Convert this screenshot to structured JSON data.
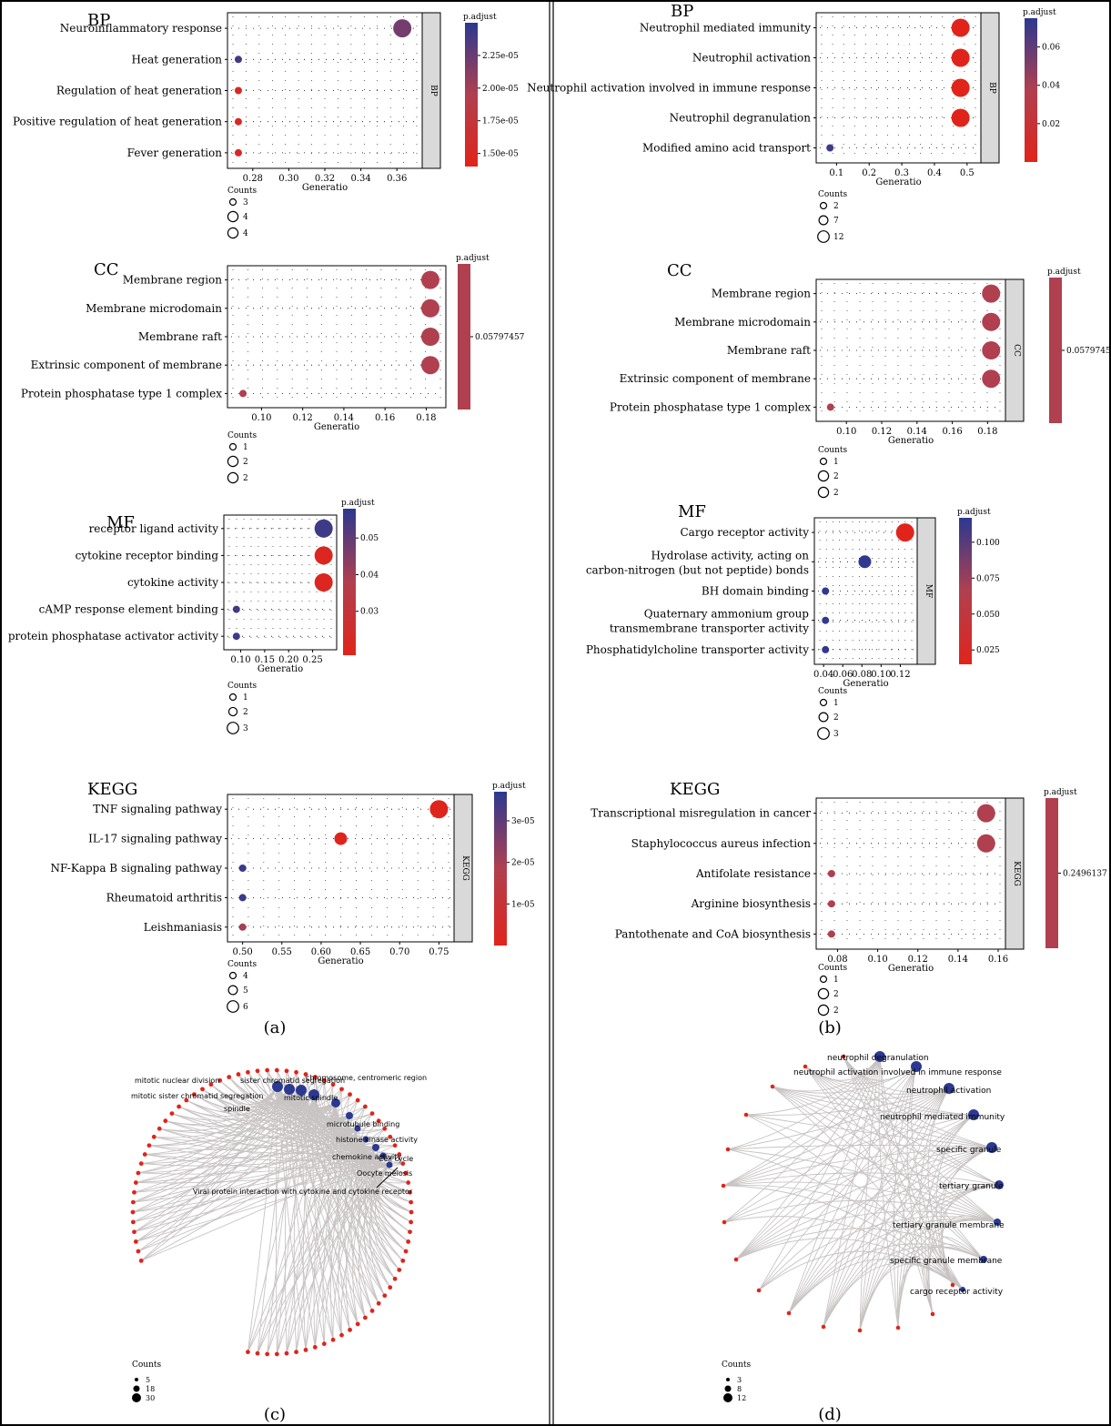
{
  "panels": {
    "a": "(a)",
    "b": "(b)",
    "c": "(c)",
    "d": "(d)"
  },
  "common": {
    "xlabel": "Generatio",
    "legend_title": "Counts",
    "colorbar_title": "p.adjust"
  },
  "colors": {
    "high_sig_red": "#e0241b",
    "mid": "#b0404f",
    "low_sig_blue": "#2b3990",
    "strip_bg": "#d9d9d9",
    "edge": "#c8c3c3",
    "node_red": "#e0241b"
  },
  "chart_data": [
    {
      "id": "a-bp",
      "type": "scatter",
      "title": "BP",
      "strip": "BP",
      "categories": [
        "Neuroinflammatory response",
        "Heat generation",
        "Regulation of heat generation",
        "Positive regulation of heat generation",
        "Fever generation"
      ],
      "x": [
        0.363,
        0.272,
        0.272,
        0.272,
        0.272
      ],
      "counts": [
        4,
        3,
        3,
        3,
        3
      ],
      "p_adjust": [
        2.2e-05,
        2.4e-05,
        1.5e-05,
        1.5e-05,
        1.5e-05
      ],
      "xlim": [
        0.27,
        0.37
      ],
      "xticks": [
        "0.28",
        "0.30",
        "0.32",
        "0.34",
        "0.36"
      ],
      "xtick_values": [
        0.28,
        0.3,
        0.32,
        0.34,
        0.36
      ],
      "colorbar": {
        "range": [
          1.4e-05,
          2.5e-05
        ],
        "ticks": [
          "2.25e-05",
          "2.00e-05",
          "1.75e-05",
          "1.50e-05"
        ],
        "tick_values": [
          2.25e-05,
          2e-05,
          1.75e-05,
          1.5e-05
        ],
        "gradient": true
      },
      "size_legend": [
        "3",
        "4",
        "4"
      ]
    },
    {
      "id": "a-cc",
      "type": "scatter",
      "title": "CC",
      "strip": "",
      "categories": [
        "Membrane region",
        "Membrane microdomain",
        "Membrane raft",
        "Extrinsic component of membrane",
        "Protein phosphatase type 1 complex"
      ],
      "x": [
        0.182,
        0.182,
        0.182,
        0.182,
        0.091
      ],
      "counts": [
        2,
        2,
        2,
        2,
        1
      ],
      "p_adjust": [
        0.05797457,
        0.05797457,
        0.05797457,
        0.05797457,
        0.05797457
      ],
      "xlim": [
        0.087,
        0.186
      ],
      "xticks": [
        "0.10",
        "0.12",
        "0.14",
        "0.16",
        "0.18"
      ],
      "xtick_values": [
        0.1,
        0.12,
        0.14,
        0.16,
        0.18
      ],
      "colorbar": {
        "ticks": [
          "0.05797457"
        ],
        "tick_values": [
          0.5
        ],
        "gradient": false
      },
      "size_legend": [
        "1",
        "2",
        "2"
      ]
    },
    {
      "id": "a-mf",
      "type": "scatter",
      "title": "MF",
      "strip": "",
      "categories": [
        "receptor ligand activity",
        "cytokine receptor binding",
        "cytokine activity",
        "cAMP response element binding",
        "protein phosphatase activator activity"
      ],
      "x": [
        0.273,
        0.273,
        0.273,
        0.091,
        0.091
      ],
      "counts": [
        3,
        3,
        3,
        1,
        1
      ],
      "p_adjust": [
        0.055,
        0.02,
        0.02,
        0.055,
        0.055
      ],
      "xlim": [
        0.08,
        0.285
      ],
      "xticks": [
        "0.10",
        "0.15",
        "0.20",
        "0.25"
      ],
      "xtick_values": [
        0.1,
        0.15,
        0.2,
        0.25
      ],
      "colorbar": {
        "range": [
          0.018,
          0.058
        ],
        "ticks": [
          "0.05",
          "0.04",
          "0.03"
        ],
        "tick_values": [
          0.05,
          0.04,
          0.03
        ],
        "gradient": true
      },
      "size_legend": [
        "1",
        "2",
        "3"
      ]
    },
    {
      "id": "a-kegg",
      "type": "scatter",
      "title": "KEGG",
      "strip": "KEGG",
      "categories": [
        "TNF signaling pathway",
        "IL-17 signaling pathway",
        "NF-Kappa B signaling pathway",
        "Rheumatoid arthritis",
        "Leishmaniasis"
      ],
      "x": [
        0.75,
        0.625,
        0.5,
        0.5,
        0.5
      ],
      "counts": [
        6,
        5,
        4,
        4,
        4
      ],
      "p_adjust": [
        2e-07,
        2e-07,
        3.5e-05,
        3.5e-05,
        2e-05
      ],
      "xlim": [
        0.49,
        0.76
      ],
      "xticks": [
        "0.50",
        "0.55",
        "0.60",
        "0.65",
        "0.70",
        "0.75"
      ],
      "xtick_values": [
        0.5,
        0.55,
        0.6,
        0.65,
        0.7,
        0.75
      ],
      "colorbar": {
        "range": [
          0,
          3.7e-05
        ],
        "ticks": [
          "3e-05",
          "2e-05",
          "1e-05"
        ],
        "tick_values": [
          3e-05,
          2e-05,
          1e-05
        ],
        "gradient": true
      },
      "size_legend": [
        "4",
        "5",
        "6"
      ]
    },
    {
      "id": "b-bp",
      "type": "scatter",
      "title": "BP",
      "strip": "BP",
      "categories": [
        "Neutrophil mediated immunity",
        "Neutrophil activation",
        "Neutrophil activation involved in immune response",
        "Neutrophil degranulation",
        "Modified amino acid transport"
      ],
      "x": [
        0.48,
        0.48,
        0.48,
        0.48,
        0.08
      ],
      "counts": [
        12,
        12,
        12,
        12,
        2
      ],
      "p_adjust": [
        0.0,
        0.0,
        0.0,
        0.0,
        0.07
      ],
      "xlim": [
        0.06,
        0.52
      ],
      "xticks": [
        "0.1",
        "0.2",
        "0.3",
        "0.4",
        "0.5"
      ],
      "xtick_values": [
        0.1,
        0.2,
        0.3,
        0.4,
        0.5
      ],
      "colorbar": {
        "range": [
          0,
          0.075
        ],
        "ticks": [
          "0.06",
          "0.04",
          "0.02"
        ],
        "tick_values": [
          0.06,
          0.04,
          0.02
        ],
        "gradient": true
      },
      "size_legend": [
        "2",
        "7",
        "12"
      ]
    },
    {
      "id": "b-cc",
      "type": "scatter",
      "title": "CC",
      "strip": "CC",
      "categories": [
        "Membrane region",
        "Membrane microdomain",
        "Membrane raft",
        "Extrinsic component of membrane",
        "Protein phosphatase type 1 complex"
      ],
      "x": [
        0.182,
        0.182,
        0.182,
        0.182,
        0.091
      ],
      "counts": [
        2,
        2,
        2,
        2,
        1
      ],
      "p_adjust": [
        0.05797457,
        0.05797457,
        0.05797457,
        0.05797457,
        0.05797457
      ],
      "xlim": [
        0.087,
        0.186
      ],
      "xticks": [
        "0.10",
        "0.12",
        "0.14",
        "0.16",
        "0.18"
      ],
      "xtick_values": [
        0.1,
        0.12,
        0.14,
        0.16,
        0.18
      ],
      "colorbar": {
        "ticks": [
          "0.05797457"
        ],
        "tick_values": [
          0.5
        ],
        "gradient": false
      },
      "size_legend": [
        "1",
        "2",
        "2"
      ]
    },
    {
      "id": "b-mf",
      "type": "scatter",
      "title": "MF",
      "strip": "MF",
      "categories": [
        "Cargo receptor activity",
        "Hydrolase activity, acting on|carbon-nitrogen (but not peptide) bonds",
        "BH domain binding",
        "Quaternary ammonium group|transmembrane transporter activity",
        "Phosphatidylcholine transporter activity"
      ],
      "x": [
        0.125,
        0.083,
        0.042,
        0.042,
        0.042
      ],
      "counts": [
        3,
        2,
        1,
        1,
        1
      ],
      "p_adjust": [
        0.015,
        0.115,
        0.115,
        0.115,
        0.115
      ],
      "xlim": [
        0.038,
        0.13
      ],
      "xticks": [
        "0.04",
        "0.06",
        "0.08",
        "0.10",
        "0.12"
      ],
      "xtick_values": [
        0.04,
        0.06,
        0.08,
        0.1,
        0.12
      ],
      "colorbar": {
        "range": [
          0.015,
          0.117
        ],
        "ticks": [
          "0.100",
          "0.075",
          "0.050",
          "0.025"
        ],
        "tick_values": [
          0.1,
          0.075,
          0.05,
          0.025
        ],
        "gradient": true
      },
      "size_legend": [
        "1",
        "2",
        "3"
      ]
    },
    {
      "id": "b-kegg",
      "type": "scatter",
      "title": "KEGG",
      "strip": "KEGG",
      "categories": [
        "Transcriptional misregulation in cancer",
        "Staphylococcus aureus infection",
        "Antifolate resistance",
        "Arginine biosynthesis",
        "Pantothenate and CoA biosynthesis"
      ],
      "x": [
        0.154,
        0.154,
        0.077,
        0.077,
        0.077
      ],
      "counts": [
        2,
        2,
        1,
        1,
        1
      ],
      "p_adjust": [
        0.2496137,
        0.2496137,
        0.2496137,
        0.2496137,
        0.2496137
      ],
      "xlim": [
        0.073,
        0.16
      ],
      "xticks": [
        "0.08",
        "0.10",
        "0.12",
        "0.14",
        "0.16"
      ],
      "xtick_values": [
        0.08,
        0.1,
        0.12,
        0.14,
        0.16
      ],
      "colorbar": {
        "ticks": [
          "0.2496137"
        ],
        "tick_values": [
          0.5
        ],
        "gradient": false
      },
      "size_legend": [
        "1",
        "2",
        "2"
      ]
    }
  ],
  "networks": {
    "c": {
      "labels": [
        "mitotic nuclear division",
        "sister chromatid segregation",
        "chromosome, centromeric region",
        "mitotic sister chromatid segregation",
        "spindle",
        "mitotic spindle",
        "microtubule binding",
        "histone kinase activity",
        "chemokine activity",
        "Cell cycle",
        "Oocyte meiosis",
        "Viral protein interaction with cytokine and cytokine receptor"
      ],
      "legend_title": "Counts",
      "legend": [
        "5",
        "18",
        "30"
      ]
    },
    "d": {
      "labels": [
        "neutrophil degranulation",
        "neutrophil activation involved in immune response",
        "neutrophil activation",
        "neutrophil mediated immunity",
        "specific granule",
        "tertiary granule",
        "tertiary granule membrane",
        "specific granule membrane",
        "cargo receptor activity"
      ],
      "legend_title": "Counts",
      "legend": [
        "3",
        "8",
        "12"
      ]
    }
  }
}
